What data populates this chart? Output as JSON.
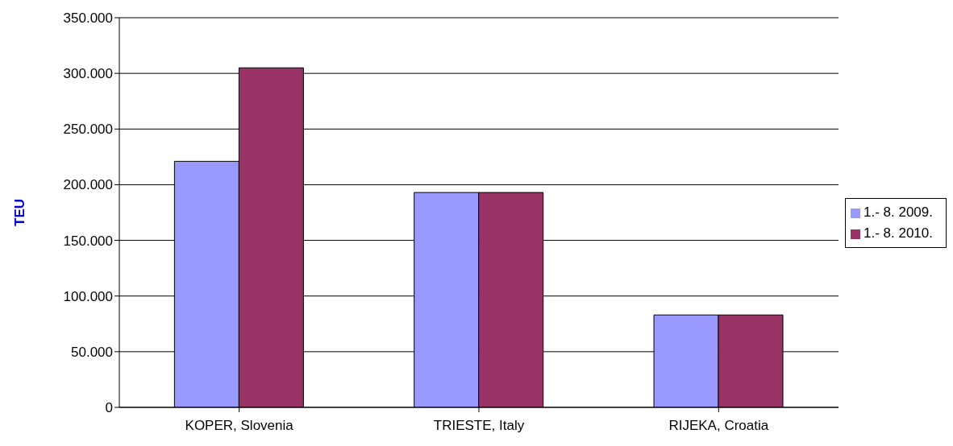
{
  "chart_data": {
    "type": "bar",
    "ylabel": "TEU",
    "categories": [
      "KOPER, Slovenia",
      "TRIESTE, Italy",
      "RIJEKA, Croatia"
    ],
    "series": [
      {
        "name": "1.- 8. 2009.",
        "color": "#9999ff",
        "values": [
          221000,
          193000,
          83000
        ]
      },
      {
        "name": "1.- 8. 2010.",
        "color": "#993366",
        "values": [
          305000,
          193000,
          83000
        ]
      }
    ],
    "ylim": [
      0,
      350000
    ],
    "yticks": [
      {
        "value": 0,
        "label": "0"
      },
      {
        "value": 50000,
        "label": "50.000"
      },
      {
        "value": 100000,
        "label": "100.000"
      },
      {
        "value": 150000,
        "label": "150.000"
      },
      {
        "value": 200000,
        "label": "200.000"
      },
      {
        "value": 250000,
        "label": "250.000"
      },
      {
        "value": 300000,
        "label": "300.000"
      },
      {
        "value": 350000,
        "label": "350.000"
      }
    ],
    "grid": "y",
    "legend": "right"
  }
}
